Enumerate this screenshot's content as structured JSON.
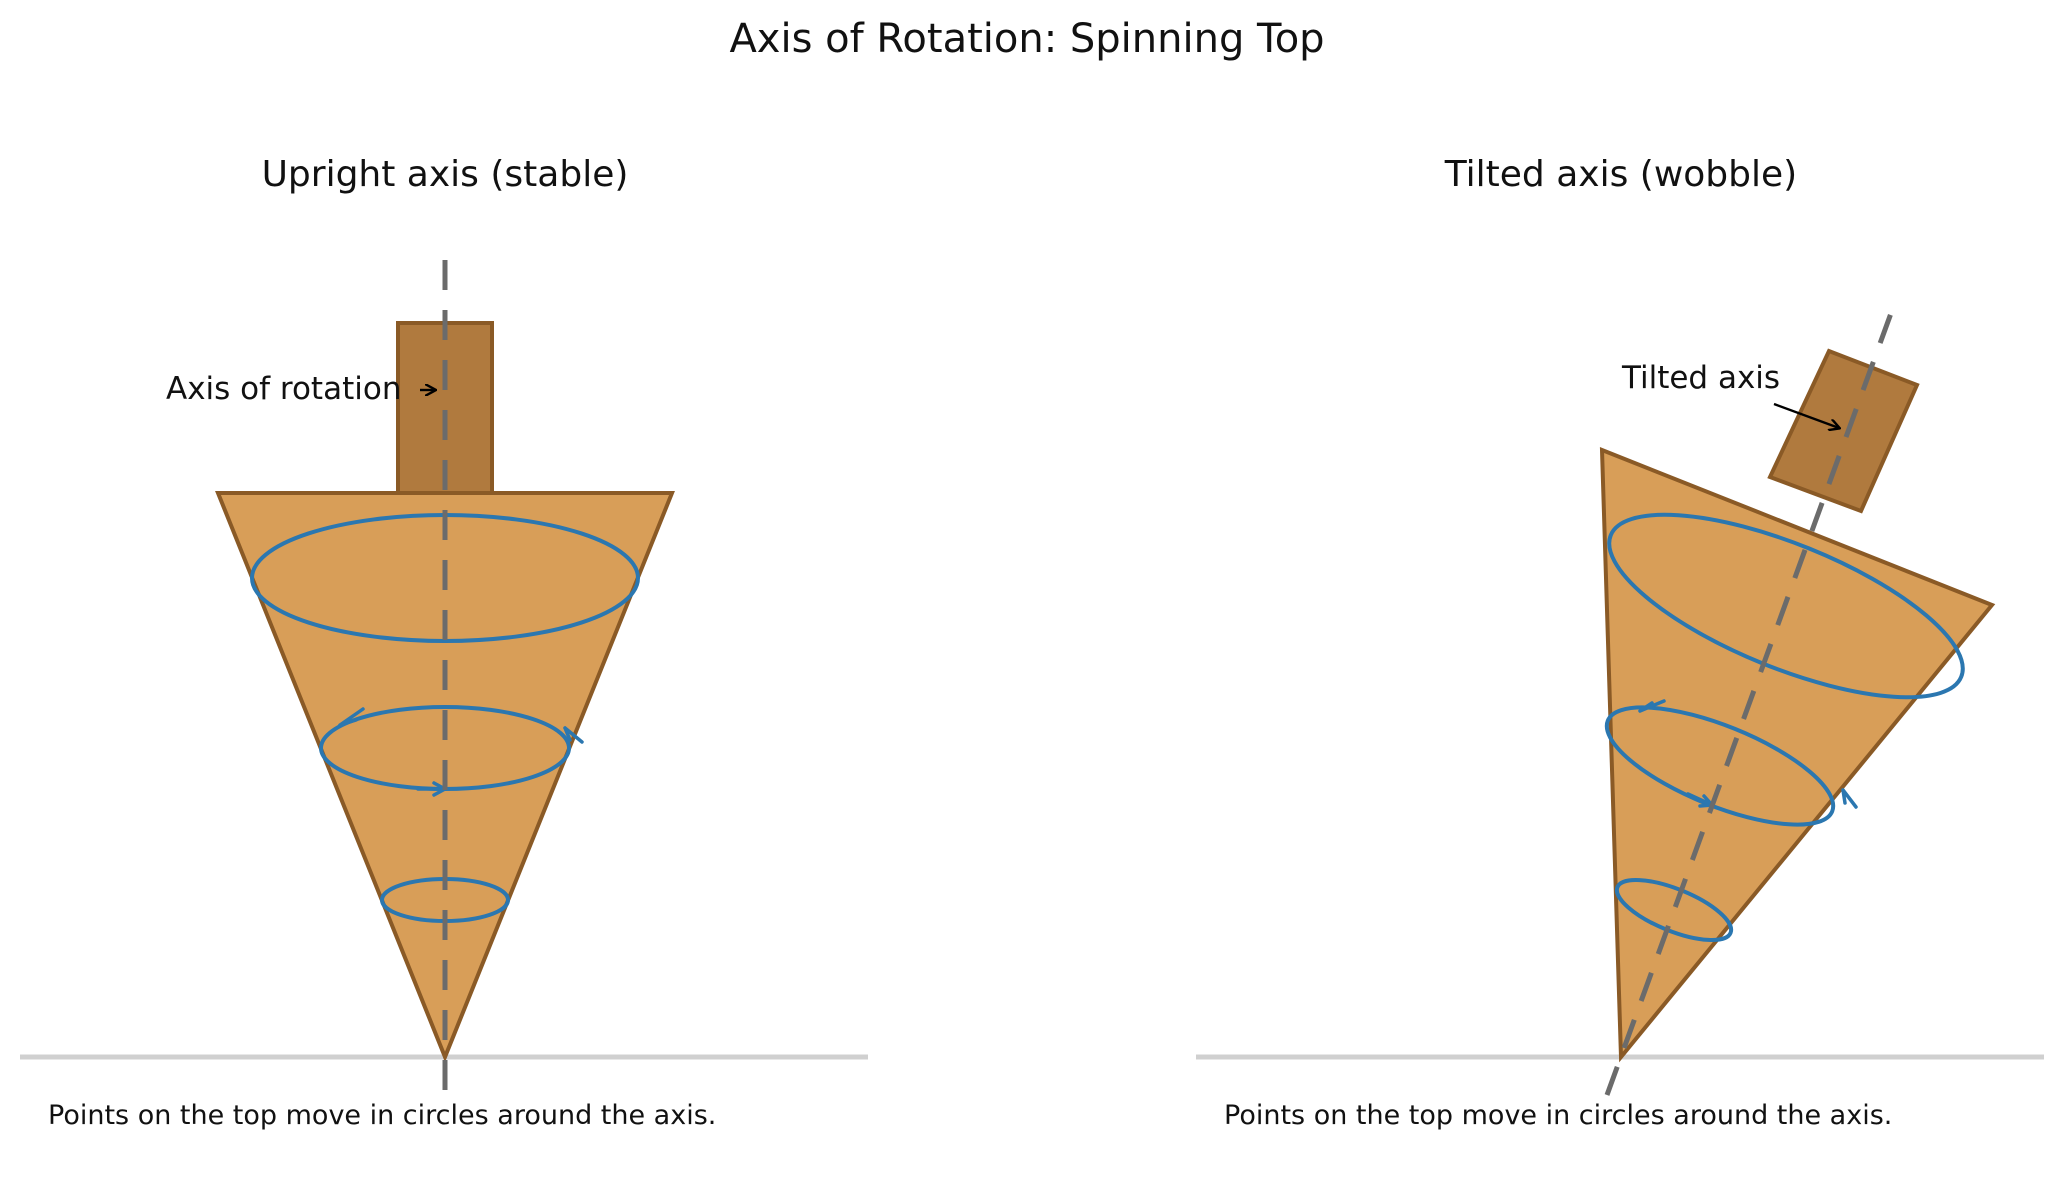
{
  "title": "Axis of Rotation: Spinning Top",
  "colors": {
    "top_fill": "#d89e58",
    "top_edge": "#8a5a26",
    "stem_fill": "#b07a3e",
    "axis_line": "#6b6b6b",
    "motion_circles": "#2b77b0",
    "ground": "#d0d0d0",
    "annotation_arrow": "#000000"
  },
  "panels": [
    {
      "title": "Upright axis (stable)",
      "annotation": "Axis of rotation",
      "caption": "Points on the top move in circles around the axis."
    },
    {
      "title": "Tilted axis (wobble)",
      "annotation": "Tilted axis",
      "caption": "Points on the top move in circles around the axis."
    }
  ]
}
